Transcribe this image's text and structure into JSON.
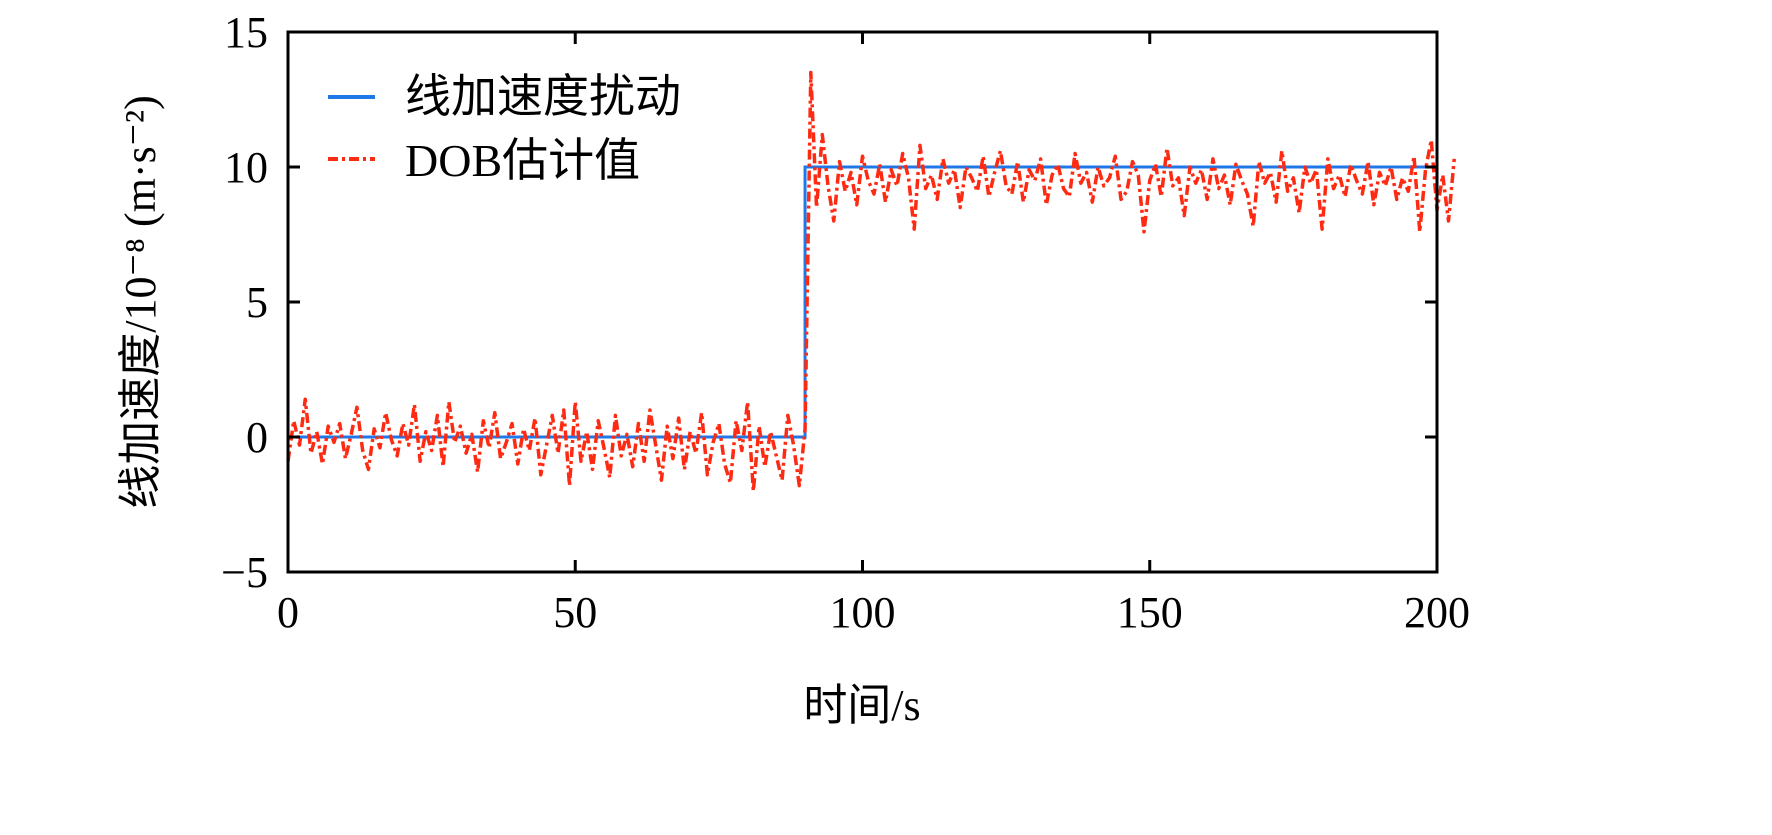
{
  "chart_data": {
    "type": "line",
    "xlabel": "时间/s",
    "ylabel": "线加速度/10⁻⁸ (m·s⁻²)",
    "xlim": [
      0,
      200
    ],
    "ylim": [
      -5,
      15
    ],
    "xticks": [
      0,
      50,
      100,
      150,
      200
    ],
    "xtick_labels": [
      "0",
      "50",
      "100",
      "150",
      "200"
    ],
    "yticks": [
      -5,
      0,
      5,
      10,
      15
    ],
    "ytick_labels": [
      "−5",
      "0",
      "5",
      "10",
      "15"
    ],
    "grid": false,
    "legend_position": "top-left",
    "series": [
      {
        "name": "线加速度扰动",
        "color": "#1f77e8",
        "style": "solid",
        "x": [
          0,
          90,
          90,
          200
        ],
        "y": [
          0,
          0,
          10,
          10
        ]
      },
      {
        "name": "DOB估计值",
        "color": "#ff2a12",
        "style": "dashdot",
        "x_start": 0,
        "x_step": 1,
        "y": [
          -0.9,
          0.6,
          -0.3,
          1.4,
          -0.6,
          0.2,
          -1.0,
          0.4,
          -0.2,
          0.5,
          -0.8,
          0.1,
          1.1,
          -0.5,
          -1.2,
          0.3,
          -0.4,
          0.9,
          -0.1,
          -0.7,
          0.5,
          -0.3,
          1.2,
          -0.9,
          0.2,
          -0.5,
          0.8,
          -1.1,
          1.3,
          -0.2,
          0.4,
          -0.6,
          0.1,
          -1.3,
          0.6,
          -0.4,
          0.9,
          -0.8,
          -0.2,
          0.5,
          -1.0,
          0.3,
          -0.5,
          0.7,
          -1.4,
          -0.3,
          0.8,
          -0.6,
          1.0,
          -1.8,
          1.3,
          -0.9,
          0.2,
          -1.2,
          0.6,
          -0.4,
          -1.5,
          0.8,
          -0.7,
          0.1,
          -1.1,
          0.5,
          -0.9,
          1.0,
          -0.3,
          -1.6,
          0.4,
          -0.8,
          0.7,
          -1.2,
          0.2,
          -0.6,
          0.9,
          -1.4,
          -0.2,
          0.5,
          -1.0,
          -1.7,
          0.6,
          -0.5,
          1.3,
          -2.0,
          0.4,
          -1.1,
          0.2,
          -0.7,
          -1.6,
          0.8,
          -0.3,
          -1.8,
          0.3,
          13.5,
          8.5,
          11.2,
          9.3,
          8.0,
          10.2,
          9.1,
          9.8,
          8.6,
          10.4,
          9.5,
          9.0,
          10.1,
          8.7,
          9.9,
          9.3,
          10.5,
          9.6,
          7.7,
          10.8,
          9.2,
          9.7,
          8.8,
          10.3,
          9.4,
          9.9,
          8.5,
          10.0,
          9.6,
          9.1,
          10.4,
          8.9,
          9.8,
          10.6,
          9.3,
          9.0,
          10.2,
          8.7,
          9.9,
          9.5,
          10.3,
          8.6,
          9.7,
          10.1,
          9.2,
          8.9,
          10.5,
          9.4,
          9.8,
          8.7,
          10.0,
          9.3,
          9.6,
          10.4,
          8.8,
          9.1,
          10.2,
          9.7,
          7.6,
          9.5,
          10.1,
          8.9,
          10.7,
          9.3,
          9.6,
          8.2,
          10.0,
          9.4,
          9.9,
          8.8,
          10.3,
          9.2,
          9.7,
          8.6,
          10.1,
          9.5,
          9.0,
          7.8,
          10.2,
          9.4,
          9.8,
          8.7,
          10.6,
          9.1,
          9.6,
          8.3,
          10.0,
          9.4,
          9.9,
          7.7,
          10.3,
          9.2,
          9.7,
          8.9,
          10.1,
          9.5,
          9.0,
          10.2,
          8.6,
          9.8,
          9.3,
          10.0,
          8.8,
          9.6,
          9.1,
          10.4,
          7.6,
          9.9,
          11.0,
          8.4,
          9.7,
          8.0,
          10.3
        ]
      }
    ]
  }
}
